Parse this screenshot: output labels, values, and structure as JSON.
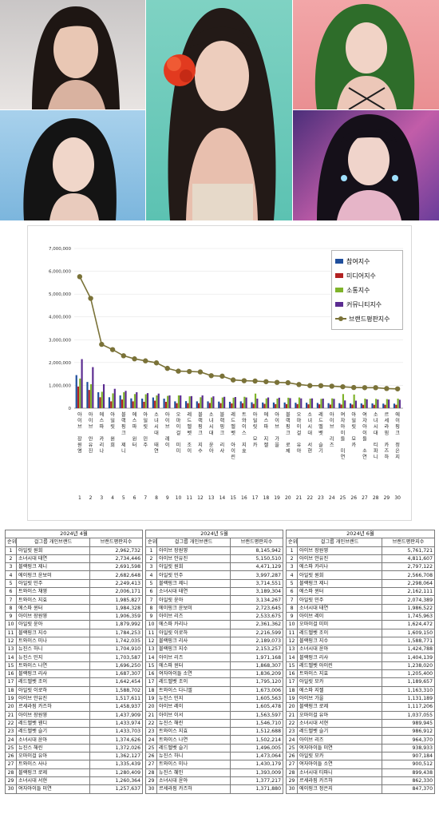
{
  "colors": {
    "participation": "#1f4e9c",
    "media": "#b22222",
    "communication": "#7fb32a",
    "community": "#5b2c91",
    "brand": "#7a7238"
  },
  "chart_data": {
    "type": "bar",
    "title": "",
    "xlabel": "",
    "ylabel": "",
    "ylim": [
      0,
      7000000
    ],
    "yticks": [
      "7,000,000",
      "6,000,000",
      "5,000,000",
      "4,000,000",
      "3,000,000",
      "2,000,000",
      "1,000,000",
      "0"
    ],
    "legend_position": "top-right",
    "categories": [
      "아이브 장원영",
      "아이브 안유진",
      "에스파 카리나",
      "아일릿 원희",
      "블랙핑크 제니",
      "에스파 윈터",
      "아일릿 민주",
      "소녀시대 태연",
      "아이브 레이",
      "오마이걸 미미",
      "레드벨벳 조이",
      "블랙핑크 지수",
      "소녀시대 윤아",
      "블랙핑크 리사",
      "레드벨벳 아이린",
      "트와이스 지효",
      "아일릿 모카",
      "에스파 지젤",
      "아이브 가을",
      "블랙핑크 로제",
      "오마이걸 유아",
      "소녀시대 서현",
      "레드벨벳 슬기",
      "아이브 리즈",
      "여자아이들 미연",
      "아일릿 모카",
      "여자아이들 소연",
      "소녀시대 티파니",
      "르세라핌 카즈하",
      "에이핑크 정은지"
    ],
    "x_numbers": [
      "1",
      "2",
      "3",
      "4",
      "5",
      "6",
      "7",
      "8",
      "9",
      "10",
      "11",
      "12",
      "13",
      "14",
      "15",
      "16",
      "17",
      "18",
      "19",
      "20",
      "21",
      "22",
      "23",
      "24",
      "25",
      "26",
      "27",
      "28",
      "29",
      "30"
    ],
    "series": [
      {
        "name": "참여지수",
        "kind": "bar",
        "values": [
          1450000,
          1150000,
          700000,
          480000,
          560000,
          430000,
          420000,
          470000,
          420000,
          300000,
          310000,
          300000,
          300000,
          290000,
          280000,
          300000,
          260000,
          250000,
          250000,
          250000,
          240000,
          240000,
          230000,
          220000,
          220000,
          210000,
          210000,
          210000,
          200000,
          200000
        ]
      },
      {
        "name": "미디어지수",
        "kind": "bar",
        "values": [
          950000,
          800000,
          480000,
          300000,
          380000,
          300000,
          280000,
          330000,
          280000,
          220000,
          220000,
          220000,
          230000,
          220000,
          210000,
          220000,
          190000,
          190000,
          180000,
          180000,
          180000,
          170000,
          170000,
          160000,
          160000,
          160000,
          150000,
          150000,
          150000,
          150000
        ]
      },
      {
        "name": "소통지수",
        "kind": "bar",
        "values": [
          1300000,
          1050000,
          720000,
          650000,
          700000,
          620000,
          610000,
          560000,
          540000,
          560000,
          520000,
          480000,
          470000,
          470000,
          460000,
          500000,
          640000,
          430000,
          420000,
          460000,
          470000,
          420000,
          410000,
          430000,
          620000,
          600000,
          420000,
          410000,
          400000,
          420000
        ]
      },
      {
        "name": "커뮤니티지수",
        "kind": "bar",
        "values": [
          2150000,
          1800000,
          1050000,
          850000,
          760000,
          700000,
          660000,
          640000,
          560000,
          560000,
          530000,
          560000,
          520000,
          500000,
          490000,
          470000,
          420000,
          470000,
          460000,
          440000,
          430000,
          430000,
          420000,
          410000,
          340000,
          330000,
          390000,
          380000,
          380000,
          370000
        ]
      },
      {
        "name": "브랜드평판지수",
        "kind": "line",
        "values": [
          5761721,
          4811607,
          2797122,
          2566708,
          2298064,
          2162111,
          2074389,
          1986522,
          1745963,
          1624472,
          1609150,
          1588771,
          1424788,
          1404139,
          1238020,
          1205400,
          1189657,
          1163310,
          1131189,
          1117206,
          1037055,
          989945,
          986912,
          964370,
          938933,
          907184,
          900512,
          899438,
          862330,
          847370
        ]
      }
    ]
  },
  "table": {
    "months": [
      "2024년 4월",
      "2024년 5월",
      "2024년 6월"
    ],
    "headers": [
      "순위",
      "걸그룹 개인브랜드",
      "브랜드평판지수"
    ],
    "april": [
      [
        "1",
        "아일릿 원희",
        "2,962,732"
      ],
      [
        "2",
        "소녀시대 태연",
        "2,734,446"
      ],
      [
        "3",
        "블랙핑크 제니",
        "2,691,598"
      ],
      [
        "4",
        "에이핑크 윤보미",
        "2,682,648"
      ],
      [
        "5",
        "아일릿 민주",
        "2,249,413"
      ],
      [
        "6",
        "트와이스 채영",
        "2,006,171"
      ],
      [
        "7",
        "트와이스 지효",
        "1,985,827"
      ],
      [
        "8",
        "에스파 윈터",
        "1,984,328"
      ],
      [
        "9",
        "아이브 장원영",
        "1,906,359"
      ],
      [
        "10",
        "아일릿 윤아",
        "1,879,992"
      ],
      [
        "11",
        "블랙핑크 지수",
        "1,784,253"
      ],
      [
        "12",
        "트와이스 미나",
        "1,742,035"
      ],
      [
        "13",
        "뉴진스 하니",
        "1,704,910"
      ],
      [
        "14",
        "뉴진스 민지",
        "1,703,587"
      ],
      [
        "15",
        "트와이스 나연",
        "1,696,250"
      ],
      [
        "16",
        "블랙핑크 리사",
        "1,687,307"
      ],
      [
        "17",
        "레드벨벳 조이",
        "1,642,454"
      ],
      [
        "18",
        "아일릿 이로하",
        "1,588,702"
      ],
      [
        "19",
        "아이브 안유진",
        "1,517,611"
      ],
      [
        "20",
        "르세라핌 카즈하",
        "1,458,937"
      ],
      [
        "21",
        "아이브 장원영",
        "1,437,909"
      ],
      [
        "22",
        "레드벨벳 웬디",
        "1,433,974"
      ],
      [
        "23",
        "레드벨벳 슬기",
        "1,433,703"
      ],
      [
        "24",
        "소녀시대 윤아",
        "1,374,626"
      ],
      [
        "25",
        "뉴진스 해린",
        "1,372,026"
      ],
      [
        "26",
        "오마이걸 유아",
        "1,362,127"
      ],
      [
        "27",
        "트와이스 사나",
        "1,335,439"
      ],
      [
        "28",
        "블랙핑크 로제",
        "1,280,409"
      ],
      [
        "29",
        "소녀시대 서현",
        "1,260,364"
      ],
      [
        "30",
        "여자아이들 미연",
        "1,257,637"
      ]
    ],
    "may": [
      [
        "1",
        "아이브 장원영",
        "8,145,942"
      ],
      [
        "2",
        "아이브 안유진",
        "5,150,510"
      ],
      [
        "3",
        "아일릿 원희",
        "4,471,129"
      ],
      [
        "4",
        "아일릿 민주",
        "3,997,287"
      ],
      [
        "5",
        "블랙핑크 제니",
        "3,714,551"
      ],
      [
        "6",
        "소녀시대 태연",
        "3,189,304"
      ],
      [
        "7",
        "아일릿 윤아",
        "3,134,267"
      ],
      [
        "8",
        "에이핑크 윤보미",
        "2,723,645"
      ],
      [
        "9",
        "아이브 리즈",
        "2,533,675"
      ],
      [
        "10",
        "에스파 카리나",
        "2,361,362"
      ],
      [
        "11",
        "아일릿 이로하",
        "2,216,599"
      ],
      [
        "12",
        "블랙핑크 리사",
        "2,189,073"
      ],
      [
        "13",
        "블랙핑크 지수",
        "2,153,257"
      ],
      [
        "14",
        "아이브 리즈",
        "1,971,168"
      ],
      [
        "15",
        "에스파 윈터",
        "1,868,307"
      ],
      [
        "16",
        "여자아이들 소연",
        "1,836,209"
      ],
      [
        "17",
        "레드벨벳 조이",
        "1,795,120"
      ],
      [
        "18",
        "트와이스 다니엘",
        "1,673,006"
      ],
      [
        "19",
        "뉴진스 민지",
        "1,605,563"
      ],
      [
        "20",
        "아이브 레이",
        "1,605,478"
      ],
      [
        "21",
        "아이브 이서",
        "1,563,597"
      ],
      [
        "22",
        "뉴진스 해린",
        "1,546,710"
      ],
      [
        "23",
        "트와이스 지효",
        "1,512,688"
      ],
      [
        "24",
        "트와이스 나연",
        "1,502,214"
      ],
      [
        "25",
        "레드벨벳 슬기",
        "1,496,005"
      ],
      [
        "26",
        "뉴진스 하니",
        "1,473,064"
      ],
      [
        "27",
        "트와이스 미나",
        "1,430,179"
      ],
      [
        "28",
        "뉴진스 혜인",
        "1,393,009"
      ],
      [
        "29",
        "소녀시대 윤아",
        "1,377,217"
      ],
      [
        "30",
        "르세라핌 카즈하",
        "1,371,880"
      ]
    ],
    "june": [
      [
        "1",
        "아이브 장원영",
        "5,761,721"
      ],
      [
        "2",
        "아이브 안유진",
        "4,811,607"
      ],
      [
        "3",
        "에스파 카리나",
        "2,797,122"
      ],
      [
        "4",
        "아일릿 원희",
        "2,566,708"
      ],
      [
        "5",
        "블랙핑크 제니",
        "2,298,064"
      ],
      [
        "6",
        "에스파 윈터",
        "2,162,111"
      ],
      [
        "7",
        "아일릿 민주",
        "2,074,389"
      ],
      [
        "8",
        "소녀시대 태연",
        "1,986,522"
      ],
      [
        "9",
        "아이브 레이",
        "1,745,963"
      ],
      [
        "10",
        "오마이걸 미미",
        "1,624,472"
      ],
      [
        "11",
        "레드벨벳 조이",
        "1,609,150"
      ],
      [
        "12",
        "블랙핑크 지수",
        "1,588,771"
      ],
      [
        "13",
        "소녀시대 윤아",
        "1,424,788"
      ],
      [
        "14",
        "블랙핑크 리사",
        "1,404,139"
      ],
      [
        "15",
        "레드벨벳 아이린",
        "1,238,020"
      ],
      [
        "16",
        "트와이스 지효",
        "1,205,400"
      ],
      [
        "17",
        "아일릿 모카",
        "1,189,657"
      ],
      [
        "18",
        "에스파 지젤",
        "1,163,310"
      ],
      [
        "19",
        "아이브 가을",
        "1,131,189"
      ],
      [
        "20",
        "블랙핑크 로제",
        "1,117,206"
      ],
      [
        "21",
        "오마이걸 유아",
        "1,037,055"
      ],
      [
        "22",
        "소녀시대 서현",
        "989,945"
      ],
      [
        "23",
        "레드벨벳 슬기",
        "986,912"
      ],
      [
        "24",
        "아이브 리즈",
        "964,370"
      ],
      [
        "25",
        "여자아이들 미연",
        "938,933"
      ],
      [
        "26",
        "아일릿 모카",
        "907,184"
      ],
      [
        "27",
        "여자아이들 소연",
        "900,512"
      ],
      [
        "28",
        "소녀시대 티파니",
        "899,438"
      ],
      [
        "29",
        "르세라핌 카즈하",
        "862,330"
      ],
      [
        "30",
        "에이핑크 정은지",
        "847,370"
      ]
    ]
  }
}
